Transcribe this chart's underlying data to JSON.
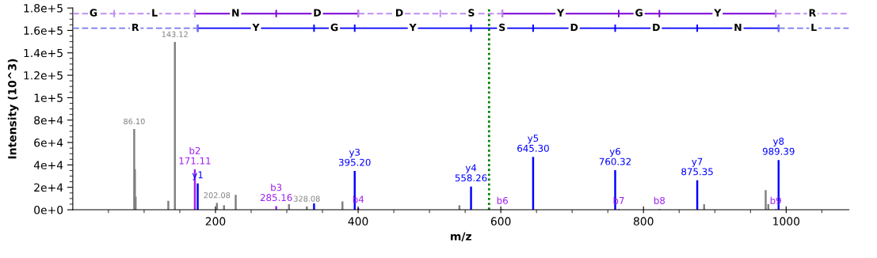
{
  "chart_data": {
    "type": "bar",
    "xlabel": "m/z",
    "ylabel": "Intensity (10^3)",
    "xlim": [
      0,
      1088
    ],
    "ylim": [
      0,
      180000
    ],
    "xticks": [
      {
        "value": 50,
        "label": null
      },
      {
        "value": 100,
        "label": null
      },
      {
        "value": 150,
        "label": null
      },
      200,
      {
        "value": 250,
        "label": null
      },
      {
        "value": 300,
        "label": null
      },
      {
        "value": 350,
        "label": null
      },
      400,
      {
        "value": 450,
        "label": null
      },
      {
        "value": 500,
        "label": null
      },
      {
        "value": 550,
        "label": null
      },
      600,
      {
        "value": 650,
        "label": null
      },
      {
        "value": 700,
        "label": null
      },
      {
        "value": 750,
        "label": null
      },
      800,
      {
        "value": 850,
        "label": null
      },
      {
        "value": 900,
        "label": null
      },
      {
        "value": 950,
        "label": null
      },
      1000,
      {
        "value": 1050,
        "label": null
      }
    ],
    "yticks": [
      {
        "value": 0,
        "label": "0e+0"
      },
      {
        "value": 5000,
        "label": null
      },
      {
        "value": 10000,
        "label": null
      },
      {
        "value": 15000,
        "label": null
      },
      {
        "value": 20000,
        "label": "2e+4"
      },
      {
        "value": 25000,
        "label": null
      },
      {
        "value": 30000,
        "label": null
      },
      {
        "value": 35000,
        "label": null
      },
      {
        "value": 40000,
        "label": "4e+4"
      },
      {
        "value": 45000,
        "label": null
      },
      {
        "value": 50000,
        "label": null
      },
      {
        "value": 55000,
        "label": null
      },
      {
        "value": 60000,
        "label": "6e+4"
      },
      {
        "value": 65000,
        "label": null
      },
      {
        "value": 70000,
        "label": null
      },
      {
        "value": 75000,
        "label": null
      },
      {
        "value": 80000,
        "label": "8e+4"
      },
      {
        "value": 85000,
        "label": null
      },
      {
        "value": 90000,
        "label": null
      },
      {
        "value": 95000,
        "label": null
      },
      {
        "value": 100000,
        "label": "1e+5"
      },
      {
        "value": 105000,
        "label": null
      },
      {
        "value": 110000,
        "label": null
      },
      {
        "value": 115000,
        "label": null
      },
      {
        "value": 120000,
        "label": "1.2e+5"
      },
      {
        "value": 125000,
        "label": null
      },
      {
        "value": 130000,
        "label": null
      },
      {
        "value": 135000,
        "label": null
      },
      {
        "value": 140000,
        "label": "1.4e+5"
      },
      {
        "value": 145000,
        "label": null
      },
      {
        "value": 150000,
        "label": null
      },
      {
        "value": 155000,
        "label": null
      },
      {
        "value": 160000,
        "label": "1.6e+5"
      },
      {
        "value": 165000,
        "label": null
      },
      {
        "value": 170000,
        "label": null
      },
      {
        "value": 175000,
        "label": null
      },
      {
        "value": 180000,
        "label": "1.8e+5"
      }
    ],
    "grid": false,
    "legend": false,
    "series": [
      {
        "color": "#808080",
        "x": [
          86.1,
          87.1,
          88.1,
          133.9,
          143.12,
          202.08,
          212.0,
          228.4,
          303.1,
          328.08,
          378.0,
          542.0,
          885.0,
          971.3,
          975.0
        ],
        "values": [
          72000,
          36300,
          11700,
          7900,
          149700,
          6100,
          4000,
          13200,
          5000,
          3000,
          7400,
          4000,
          4900,
          17500,
          5000
        ]
      },
      {
        "color": "#a020f0",
        "x": [
          171.11,
          285.16,
          400.18,
          602.24,
          765.3,
          822.33,
          985.39
        ],
        "values": [
          36000,
          3200,
          1600,
          500,
          500,
          500,
          500
        ],
        "value_labels": [
          "b2\n171.11",
          "b3\n285.16",
          "b4",
          "b6",
          "b7",
          "b8",
          "b9"
        ]
      },
      {
        "color": "#0000ff",
        "x": [
          175.12,
          338.18,
          395.2,
          558.26,
          645.3,
          760.32,
          875.35,
          989.39
        ],
        "values": [
          23500,
          5600,
          34600,
          20700,
          47100,
          35300,
          26300,
          44400
        ],
        "value_labels": [
          "y1",
          null,
          "y3\n395.20",
          "y4\n558.26",
          "y5\n645.30",
          "y6\n760.32",
          "y7\n875.35",
          "y8\n989.39"
        ]
      },
      {
        "type": "line",
        "color": "#7b00d6",
        "line_style": "solid",
        "x": [
          171.11,
          285.16,
          400.18,
          515.21,
          602.24,
          765.3,
          822.33,
          985.39
        ],
        "values": [
          175000,
          175000,
          175000,
          null,
          175000,
          175000,
          175000,
          175000
        ]
      },
      {
        "type": "line",
        "color": "#c08ff0",
        "line_style": "dashed",
        "x": [
          0,
          58.03,
          171.11,
          285.16,
          400.18,
          515.21,
          602.24,
          765.3,
          985.39,
          1088
        ],
        "values": [
          175000,
          175000,
          175000,
          null,
          175000,
          175000,
          175000,
          null,
          175000,
          175000
        ]
      },
      {
        "type": "line",
        "color": "#0000ff",
        "line_style": "solid",
        "x": [
          175.12,
          338.18,
          395.2,
          558.26,
          645.3,
          760.32,
          875.35,
          989.39
        ],
        "values": [
          162000,
          162000,
          162000,
          162000,
          162000,
          162000,
          162000,
          162000
        ]
      },
      {
        "type": "line",
        "color": "#7878f0",
        "line_style": "dashed",
        "x": [
          0,
          175.12,
          338.18,
          989.39,
          1088
        ],
        "values": [
          162000,
          162000,
          null,
          162000,
          162000
        ]
      }
    ],
    "ref_lines": [
      {
        "axis": "x",
        "value": 583.5,
        "color": "#008000",
        "line_style": "dotted"
      }
    ],
    "annotations": [
      {
        "text": "86.10",
        "x": 86.1,
        "y": 72000
      },
      {
        "text": "143.12",
        "x": 143.12,
        "y": 149700
      },
      {
        "text": "202.08",
        "x": 202.08,
        "y": 6100
      },
      {
        "text": "328.08",
        "x": 328.08,
        "y": 3000
      },
      {
        "text": "G",
        "x": 29,
        "y": 175000
      },
      {
        "text": "L",
        "x": 114.6,
        "y": 175000
      },
      {
        "text": "N",
        "x": 228.1,
        "y": 175000
      },
      {
        "text": "D",
        "x": 342.7,
        "y": 175000
      },
      {
        "text": "D",
        "x": 457.7,
        "y": 175000
      },
      {
        "text": "S",
        "x": 558.7,
        "y": 175000
      },
      {
        "text": "Y",
        "x": 683.8,
        "y": 175000
      },
      {
        "text": "G",
        "x": 793.8,
        "y": 175000
      },
      {
        "text": "Y",
        "x": 903.9,
        "y": 175000
      },
      {
        "text": "R",
        "x": 1036.7,
        "y": 175000
      },
      {
        "text": "R",
        "x": 87.6,
        "y": 162000
      },
      {
        "text": "Y",
        "x": 256.7,
        "y": 162000
      },
      {
        "text": "G",
        "x": 366.7,
        "y": 162000
      },
      {
        "text": "Y",
        "x": 476.7,
        "y": 162000
      },
      {
        "text": "S",
        "x": 601.8,
        "y": 162000
      },
      {
        "text": "D",
        "x": 702.8,
        "y": 162000
      },
      {
        "text": "D",
        "x": 817.8,
        "y": 162000
      },
      {
        "text": "N",
        "x": 932.4,
        "y": 162000
      },
      {
        "text": "L",
        "x": 1038.7,
        "y": 162000
      }
    ]
  }
}
